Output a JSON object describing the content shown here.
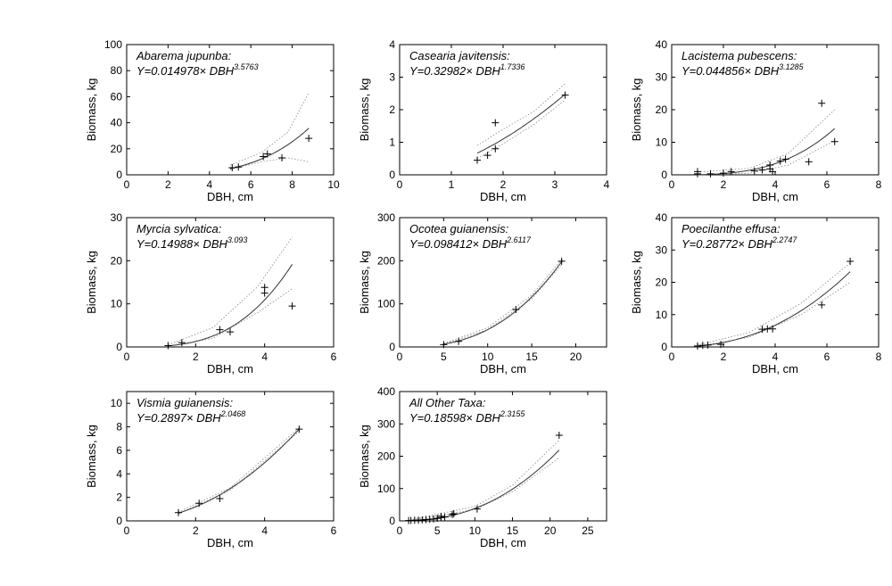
{
  "chart_data": [
    {
      "type": "scatter",
      "title": "Abarema jupunba:",
      "equation": "Y=0.014978× DBH",
      "exponent": "3.5763",
      "xlabel": "DBH, cm",
      "ylabel": "Biomass, kg",
      "xlim": [
        0,
        10
      ],
      "ylim": [
        0,
        100
      ],
      "xticks": [
        0,
        2,
        4,
        6,
        8,
        10
      ],
      "yticks": [
        0,
        20,
        40,
        60,
        80,
        100
      ],
      "fit": {
        "a": 0.014978,
        "b": 3.5763,
        "x_range": [
          5.0,
          8.8
        ],
        "band_lower": [
          [
            5.0,
            4.0
          ],
          [
            6.5,
            10.0
          ],
          [
            7.8,
            13.0
          ],
          [
            8.8,
            10.0
          ]
        ],
        "band_upper": [
          [
            5.0,
            7.5
          ],
          [
            6.5,
            17.0
          ],
          [
            7.8,
            33.0
          ],
          [
            8.8,
            63.0
          ]
        ]
      },
      "points": [
        [
          5.1,
          5.5
        ],
        [
          5.4,
          6.0
        ],
        [
          6.6,
          14.0
        ],
        [
          6.8,
          16.0
        ],
        [
          7.5,
          13.0
        ],
        [
          8.8,
          28.0
        ]
      ]
    },
    {
      "type": "scatter",
      "title": "Casearia javitensis:",
      "equation": "Y=0.32982× DBH",
      "exponent": "1.7336",
      "xlabel": "DBH, cm",
      "ylabel": "Biomass, kg",
      "xlim": [
        0,
        4
      ],
      "ylim": [
        0,
        4
      ],
      "xticks": [
        0,
        1,
        2,
        3,
        4
      ],
      "yticks": [
        0,
        1,
        2,
        3,
        4
      ],
      "fit": {
        "a": 0.32982,
        "b": 1.7336,
        "x_range": [
          1.5,
          3.2
        ],
        "band_lower": [
          [
            1.5,
            0.5
          ],
          [
            2.0,
            0.95
          ],
          [
            2.6,
            1.55
          ],
          [
            3.2,
            2.3
          ]
        ],
        "band_upper": [
          [
            1.5,
            0.9
          ],
          [
            2.0,
            1.4
          ],
          [
            2.6,
            1.95
          ],
          [
            3.2,
            2.8
          ]
        ]
      },
      "points": [
        [
          1.5,
          0.45
        ],
        [
          1.7,
          0.6
        ],
        [
          1.85,
          1.6
        ],
        [
          1.85,
          0.8
        ],
        [
          3.2,
          2.45
        ]
      ]
    },
    {
      "type": "scatter",
      "title": "Lacistema pubescens:",
      "equation": "Y=0.044856× DBH",
      "exponent": "3.1285",
      "xlabel": "DBH, cm",
      "ylabel": "Biomass, kg",
      "xlim": [
        0,
        8
      ],
      "ylim": [
        0,
        40
      ],
      "xticks": [
        0,
        2,
        4,
        6,
        8
      ],
      "yticks": [
        0,
        10,
        20,
        30,
        40
      ],
      "fit": {
        "a": 0.044856,
        "b": 3.1285,
        "x_range": [
          1.0,
          6.3
        ],
        "band_lower": [
          [
            1.0,
            0.0
          ],
          [
            3.0,
            0.5
          ],
          [
            4.5,
            3.0
          ],
          [
            6.3,
            10.5
          ]
        ],
        "band_upper": [
          [
            1.0,
            0.8
          ],
          [
            3.0,
            2.0
          ],
          [
            4.5,
            6.5
          ],
          [
            6.3,
            20.0
          ]
        ]
      },
      "points": [
        [
          1.0,
          1.0
        ],
        [
          1.0,
          0.3
        ],
        [
          1.5,
          0.3
        ],
        [
          2.0,
          0.5
        ],
        [
          2.3,
          1.0
        ],
        [
          3.2,
          1.2
        ],
        [
          3.5,
          1.5
        ],
        [
          3.8,
          3.0
        ],
        [
          3.8,
          1.8
        ],
        [
          3.9,
          1.0
        ],
        [
          4.2,
          4.2
        ],
        [
          4.4,
          4.8
        ],
        [
          5.3,
          4.0
        ],
        [
          5.8,
          22.0
        ],
        [
          6.3,
          10.2
        ]
      ]
    },
    {
      "type": "scatter",
      "title": "Myrcia sylvatica:",
      "equation": "Y=0.14988× DBH",
      "exponent": "3.093",
      "xlabel": "DBH, cm",
      "ylabel": "Biomass, kg",
      "xlim": [
        0,
        6
      ],
      "ylim": [
        0,
        30
      ],
      "xticks": [
        0,
        2,
        4,
        6
      ],
      "yticks": [
        0,
        10,
        20,
        30
      ],
      "fit": {
        "a": 0.14988,
        "b": 3.093,
        "x_range": [
          1.2,
          4.8
        ],
        "band_lower": [
          [
            1.2,
            0.1
          ],
          [
            2.5,
            2.0
          ],
          [
            3.8,
            8.0
          ],
          [
            4.8,
            13.5
          ]
        ],
        "band_upper": [
          [
            1.2,
            0.5
          ],
          [
            2.5,
            4.5
          ],
          [
            3.8,
            14.0
          ],
          [
            4.8,
            25.5
          ]
        ]
      },
      "points": [
        [
          1.2,
          0.3
        ],
        [
          1.6,
          1.0
        ],
        [
          2.7,
          4.0
        ],
        [
          3.0,
          3.5
        ],
        [
          4.0,
          13.8
        ],
        [
          4.0,
          12.5
        ],
        [
          4.8,
          9.5
        ]
      ]
    },
    {
      "type": "scatter",
      "title": "Ocotea guianensis:",
      "equation": "Y=0.098412× DBH",
      "exponent": "2.6117",
      "xlabel": "DBH, cm",
      "ylabel": "Biomass, kg",
      "xlim": [
        0,
        23.5
      ],
      "ylim": [
        0,
        300
      ],
      "xticks": [
        0,
        5,
        10,
        15,
        20
      ],
      "yticks": [
        0,
        100,
        200,
        300
      ],
      "fit": {
        "a": 0.098412,
        "b": 2.6117,
        "x_range": [
          5.0,
          18.5
        ],
        "band_lower": [
          [
            5.0,
            6.0
          ],
          [
            10.0,
            40.0
          ],
          [
            15.0,
            112.0
          ],
          [
            18.5,
            193.0
          ]
        ],
        "band_upper": [
          [
            5.0,
            8.0
          ],
          [
            10.0,
            45.0
          ],
          [
            15.0,
            120.0
          ],
          [
            18.5,
            205.0
          ]
        ]
      },
      "points": [
        [
          5.0,
          5.5
        ],
        [
          6.7,
          13.0
        ],
        [
          13.2,
          87.0
        ],
        [
          18.4,
          199.0
        ]
      ]
    },
    {
      "type": "scatter",
      "title": "Poecilanthe effusa:",
      "equation": "Y=0.28772× DBH",
      "exponent": "2.2747",
      "xlabel": "DBH, cm",
      "ylabel": "Biomass, kg",
      "xlim": [
        0,
        8
      ],
      "ylim": [
        0,
        40
      ],
      "xticks": [
        0,
        2,
        4,
        6,
        8
      ],
      "yticks": [
        0,
        10,
        20,
        30,
        40
      ],
      "fit": {
        "a": 0.28772,
        "b": 2.2747,
        "x_range": [
          1.0,
          6.9
        ],
        "band_lower": [
          [
            1.0,
            0.1
          ],
          [
            3.0,
            3.0
          ],
          [
            5.0,
            10.0
          ],
          [
            6.9,
            20.0
          ]
        ],
        "band_upper": [
          [
            1.0,
            0.6
          ],
          [
            3.0,
            4.5
          ],
          [
            5.0,
            13.5
          ],
          [
            6.9,
            26.0
          ]
        ]
      },
      "points": [
        [
          1.0,
          0.3
        ],
        [
          1.2,
          0.5
        ],
        [
          1.4,
          0.6
        ],
        [
          1.9,
          0.8
        ],
        [
          3.5,
          5.5
        ],
        [
          3.7,
          5.6
        ],
        [
          3.9,
          5.6
        ],
        [
          5.8,
          13.0
        ],
        [
          6.9,
          26.5
        ]
      ]
    },
    {
      "type": "scatter",
      "title": "Vismia guianensis:",
      "equation": "Y=0.2897× DBH",
      "exponent": "2.0468",
      "xlabel": "DBH, cm",
      "ylabel": "Biomass, kg",
      "xlim": [
        0,
        6
      ],
      "ylim": [
        0,
        11
      ],
      "xticks": [
        0,
        2,
        4,
        6
      ],
      "yticks": [
        0,
        2,
        4,
        6,
        8,
        10
      ],
      "fit": {
        "a": 0.2897,
        "b": 2.0468,
        "x_range": [
          1.5,
          5.0
        ],
        "band_lower": [
          [
            1.5,
            0.6
          ],
          [
            3.0,
            2.6
          ],
          [
            5.0,
            7.6
          ]
        ],
        "band_upper": [
          [
            1.5,
            0.75
          ],
          [
            3.0,
            2.8
          ],
          [
            5.0,
            7.9
          ]
        ]
      },
      "points": [
        [
          1.5,
          0.7
        ],
        [
          2.1,
          1.5
        ],
        [
          2.7,
          1.9
        ],
        [
          5.0,
          7.8
        ]
      ]
    },
    {
      "type": "scatter",
      "title": "All Other Taxa:",
      "equation": "Y=0.18598× DBH",
      "exponent": "2.3155",
      "xlabel": "DBH, cm",
      "ylabel": "Biomass, kg",
      "xlim": [
        0,
        27.5
      ],
      "ylim": [
        0,
        400
      ],
      "xticks": [
        0,
        5,
        10,
        15,
        20,
        25
      ],
      "yticks": [
        0,
        100,
        200,
        300,
        400
      ],
      "fit": {
        "a": 0.18598,
        "b": 2.3155,
        "x_range": [
          1.0,
          21.2
        ],
        "band_lower": [
          [
            1.0,
            0.0
          ],
          [
            10.0,
            35.0
          ],
          [
            15.0,
            90.0
          ],
          [
            21.2,
            195.0
          ]
        ],
        "band_upper": [
          [
            1.0,
            1.0
          ],
          [
            10.0,
            45.0
          ],
          [
            15.0,
            110.0
          ],
          [
            21.2,
            250.0
          ]
        ]
      },
      "points": [
        [
          1.2,
          1.0
        ],
        [
          1.5,
          1.5
        ],
        [
          2.0,
          2.0
        ],
        [
          2.5,
          2.0
        ],
        [
          3.0,
          3.0
        ],
        [
          3.5,
          4.0
        ],
        [
          4.0,
          5.0
        ],
        [
          4.5,
          6.0
        ],
        [
          5.0,
          8.0
        ],
        [
          5.5,
          10.0
        ],
        [
          6.0,
          12.0
        ],
        [
          5.5,
          14.0
        ],
        [
          7.0,
          20.0
        ],
        [
          7.2,
          22.0
        ],
        [
          10.3,
          37.0
        ],
        [
          21.2,
          265.0
        ]
      ]
    }
  ]
}
